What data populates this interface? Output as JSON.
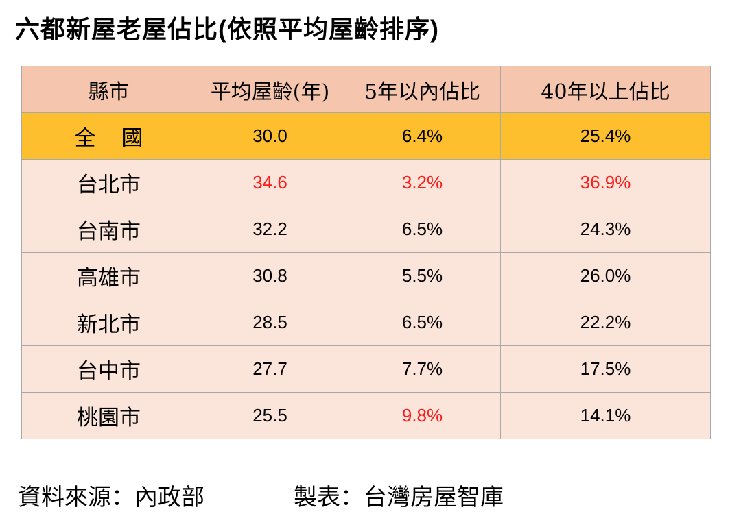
{
  "title": "六都新屋老屋佔比(依照平均屋齡排序)",
  "table": {
    "headers": [
      "縣市",
      "平均屋齡(年)",
      "5年以內佔比",
      "40年以上佔比"
    ],
    "rows": [
      {
        "name": "全國",
        "avg_age": "30.0",
        "within_5": "6.4%",
        "over_40": "25.4%"
      },
      {
        "name": "台北市",
        "avg_age": "34.6",
        "within_5": "3.2%",
        "over_40": "36.9%"
      },
      {
        "name": "台南市",
        "avg_age": "32.2",
        "within_5": "6.5%",
        "over_40": "24.3%"
      },
      {
        "name": "高雄市",
        "avg_age": "30.8",
        "within_5": "5.5%",
        "over_40": "26.0%"
      },
      {
        "name": "新北市",
        "avg_age": "28.5",
        "within_5": "6.5%",
        "over_40": "22.2%"
      },
      {
        "name": "台中市",
        "avg_age": "27.7",
        "within_5": "7.7%",
        "over_40": "17.5%"
      },
      {
        "name": "桃園市",
        "avg_age": "25.5",
        "within_5": "9.8%",
        "over_40": "14.1%"
      }
    ]
  },
  "footer": {
    "source": "資料來源：內政部",
    "maker": "製表：台灣房屋智庫"
  },
  "colors": {
    "header_bg": "#f5c6ad",
    "national_row_bg": "#fdbf2d",
    "city_row_bg": "#fbe5da",
    "highlight_text": "#ff1a1a"
  }
}
